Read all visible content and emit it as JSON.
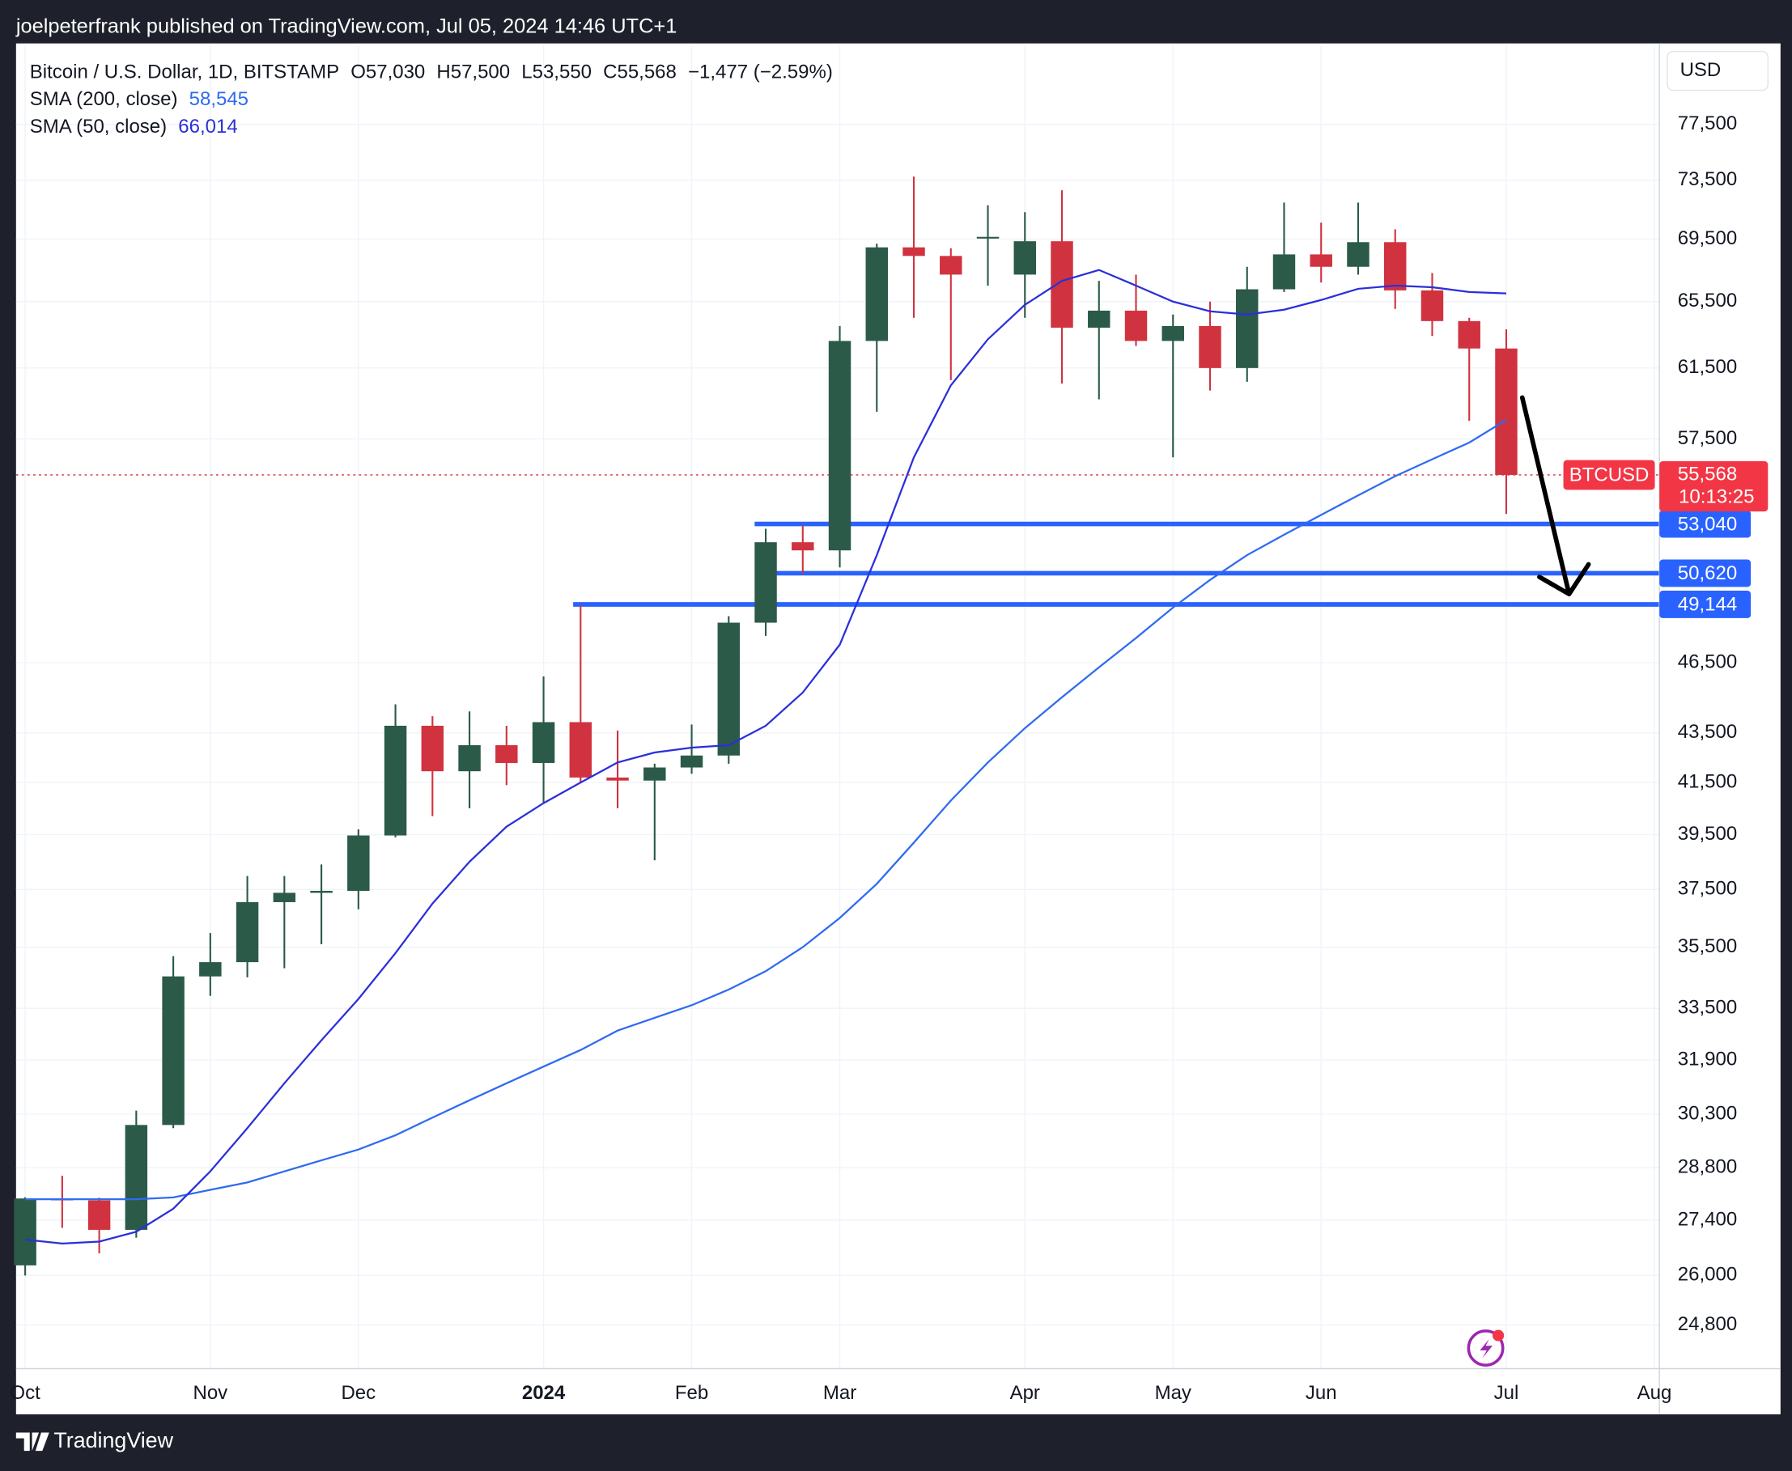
{
  "header": {
    "byline": "joelpeterfrank published on TradingView.com, Jul 05, 2024 14:46 UTC+1"
  },
  "footer": {
    "brand": "TradingView"
  },
  "chart_data": {
    "type": "candlestick",
    "legend": {
      "symbol": "Bitcoin / U.S. Dollar, 1D, BITSTAMP",
      "open": "O57,030",
      "high": "H57,500",
      "low": "L53,550",
      "close": "C55,568",
      "change": "−1,477 (−2.59%)"
    },
    "currency": "USD",
    "categories": [
      "Oct",
      null,
      null,
      null,
      null,
      "Nov",
      null,
      null,
      null,
      "Dec",
      null,
      null,
      null,
      null,
      "2024",
      null,
      null,
      null,
      "Feb",
      null,
      null,
      null,
      "Mar",
      null,
      null,
      null,
      null,
      "Apr",
      null,
      null,
      null,
      "May",
      null,
      null,
      null,
      "Jun",
      null,
      null,
      null,
      null,
      "Jul",
      null,
      null,
      null,
      "Aug"
    ],
    "open": [
      26250,
      27970,
      27920,
      27150,
      29990,
      34530,
      35000,
      37050,
      37380,
      37450,
      39470,
      43800,
      41950,
      43000,
      42280,
      43950,
      41700,
      41580,
      42100,
      42580,
      48300,
      52130,
      51730,
      63100,
      68960,
      68400,
      69640,
      67200,
      69360,
      63900,
      64940,
      63100,
      64000,
      61500,
      66270,
      68500,
      67700,
      69300,
      66200,
      64300,
      62650,
      null,
      null,
      null,
      null
    ],
    "high": [
      28000,
      28580,
      27990,
      30400,
      35200,
      35980,
      37980,
      37980,
      38400,
      39700,
      44700,
      44200,
      44400,
      43800,
      45900,
      49100,
      43600,
      42250,
      43850,
      48600,
      52800,
      52980,
      64000,
      69200,
      73750,
      68900,
      71770,
      71300,
      72800,
      66800,
      67200,
      64700,
      65500,
      67700,
      71950,
      70600,
      71950,
      70150,
      67300,
      64500,
      63800,
      null,
      null,
      null,
      null
    ],
    "low": [
      26000,
      27200,
      26550,
      26950,
      29900,
      33900,
      34500,
      34800,
      35600,
      36800,
      39400,
      40200,
      40500,
      41400,
      40700,
      41500,
      40500,
      38550,
      41850,
      42250,
      47700,
      50600,
      50900,
      59000,
      64500,
      60800,
      66500,
      64500,
      60600,
      59700,
      62800,
      56500,
      60200,
      60700,
      66100,
      66700,
      67200,
      65050,
      63400,
      58500,
      53550,
      null,
      null,
      null,
      null
    ],
    "close": [
      27970,
      27920,
      27150,
      29990,
      34530,
      35000,
      37050,
      37380,
      37450,
      39470,
      43800,
      41950,
      43000,
      42280,
      43950,
      41700,
      41580,
      42100,
      42580,
      48300,
      52130,
      51730,
      63100,
      68960,
      68400,
      67200,
      69650,
      69360,
      63900,
      64940,
      63100,
      64000,
      61500,
      66270,
      68500,
      67700,
      69300,
      66200,
      64300,
      62650,
      55568,
      null,
      null,
      null,
      null
    ],
    "up_color": "#2b5a48",
    "down_color": "#d0333f",
    "series": [
      {
        "name": "SMA (200, close)",
        "last_label": "58,545",
        "color": "#2f6bf0",
        "values": [
          27950,
          27950,
          27950,
          27950,
          28000,
          28200,
          28400,
          28700,
          29000,
          29300,
          29700,
          30200,
          30700,
          31200,
          31700,
          32200,
          32800,
          33200,
          33600,
          34100,
          34700,
          35500,
          36500,
          37700,
          39200,
          40800,
          42300,
          43700,
          45000,
          46300,
          47600,
          49000,
          50300,
          51500,
          52500,
          53500,
          54500,
          55500,
          56400,
          57300,
          58545,
          null,
          null,
          null,
          null
        ]
      },
      {
        "name": "SMA (50, close)",
        "last_label": "66,014",
        "color": "#2b2fd9",
        "values": [
          26900,
          26800,
          26850,
          27100,
          27700,
          28700,
          29900,
          31200,
          32500,
          33800,
          35300,
          37000,
          38500,
          39800,
          40700,
          41500,
          42300,
          42700,
          42900,
          43000,
          43800,
          45200,
          47300,
          51500,
          56500,
          60500,
          63200,
          65300,
          66800,
          67500,
          66500,
          65500,
          64900,
          64700,
          65000,
          65600,
          66300,
          66500,
          66400,
          66100,
          66014,
          null,
          null,
          null,
          null
        ]
      }
    ],
    "levels": [
      {
        "value": 53040,
        "label": "53,040"
      },
      {
        "value": 50620,
        "label": "50,620"
      },
      {
        "value": 49144,
        "label": "49,144"
      }
    ],
    "last_price": {
      "value": 55568,
      "label": "55,568",
      "symbol_tag": "BTCUSD",
      "countdown": "10:13:25"
    },
    "log_scale": true,
    "grid": true,
    "ylim": [
      23800,
      83500
    ],
    "yticks": [
      {
        "value": 24800,
        "label": "24,800"
      },
      {
        "value": 26000,
        "label": "26,000"
      },
      {
        "value": 27400,
        "label": "27,400"
      },
      {
        "value": 28800,
        "label": "28,800"
      },
      {
        "value": 30300,
        "label": "30,300"
      },
      {
        "value": 31900,
        "label": "31,900"
      },
      {
        "value": 33500,
        "label": "33,500"
      },
      {
        "value": 35500,
        "label": "35,500"
      },
      {
        "value": 37500,
        "label": "37,500"
      },
      {
        "value": 39500,
        "label": "39,500"
      },
      {
        "value": 41500,
        "label": "41,500"
      },
      {
        "value": 43500,
        "label": "43,500"
      },
      {
        "value": 46500,
        "label": "46,500"
      },
      {
        "value": 57500,
        "label": "57,500"
      },
      {
        "value": 61500,
        "label": "61,500"
      },
      {
        "value": 65500,
        "label": "65,500"
      },
      {
        "value": 69500,
        "label": "69,500"
      },
      {
        "value": 73500,
        "label": "73,500"
      },
      {
        "value": 77500,
        "label": "77,500"
      }
    ]
  }
}
